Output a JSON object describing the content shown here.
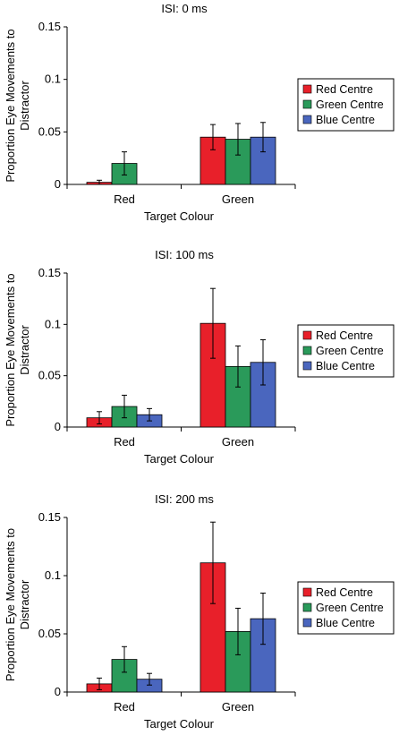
{
  "legend_entries": [
    "Red Centre",
    "Green Centre",
    "Blue Centre"
  ],
  "colors": {
    "Red Centre": "#e8202a",
    "Green Centre": "#2a9a5a",
    "Blue Centre": "#4a66be"
  },
  "chart_data": [
    {
      "type": "bar",
      "title": "ISI:  0 ms",
      "xlabel": "Target Colour",
      "ylabel": "Proportion Eye Movements to Distractor",
      "categories": [
        "Red",
        "Green"
      ],
      "ylim": [
        0,
        0.15
      ],
      "yticks": [
        "0",
        "0.05",
        "0.1",
        "0.15"
      ],
      "legend": "right",
      "series": [
        {
          "name": "Red Centre",
          "values": [
            0.002,
            0.045
          ],
          "errors": [
            0.002,
            0.012
          ]
        },
        {
          "name": "Green Centre",
          "values": [
            0.02,
            0.043
          ],
          "errors": [
            0.011,
            0.015
          ]
        },
        {
          "name": "Blue Centre",
          "values": [
            null,
            0.045
          ],
          "errors": [
            null,
            0.014
          ]
        }
      ]
    },
    {
      "type": "bar",
      "title": "ISI:  100 ms",
      "xlabel": "Target Colour",
      "ylabel": "Proportion Eye Movements to Distractor",
      "categories": [
        "Red",
        "Green"
      ],
      "ylim": [
        0,
        0.15
      ],
      "yticks": [
        "0",
        "0.05",
        "0.1",
        "0.15"
      ],
      "legend": "right",
      "series": [
        {
          "name": "Red Centre",
          "values": [
            0.009,
            0.101
          ],
          "errors": [
            0.006,
            0.034
          ]
        },
        {
          "name": "Green Centre",
          "values": [
            0.02,
            0.059
          ],
          "errors": [
            0.011,
            0.02
          ]
        },
        {
          "name": "Blue Centre",
          "values": [
            0.012,
            0.063
          ],
          "errors": [
            0.006,
            0.022
          ]
        }
      ]
    },
    {
      "type": "bar",
      "title": "ISI:  200 ms",
      "xlabel": "Target Colour",
      "ylabel": "Proportion Eye Movements to Distractor",
      "categories": [
        "Red",
        "Green"
      ],
      "ylim": [
        0,
        0.15
      ],
      "yticks": [
        "0",
        "0.05",
        "0.1",
        "0.15"
      ],
      "legend": "right",
      "series": [
        {
          "name": "Red Centre",
          "values": [
            0.007,
            0.111
          ],
          "errors": [
            0.005,
            0.035
          ]
        },
        {
          "name": "Green Centre",
          "values": [
            0.028,
            0.052
          ],
          "errors": [
            0.011,
            0.02
          ]
        },
        {
          "name": "Blue Centre",
          "values": [
            0.011,
            0.063
          ],
          "errors": [
            0.005,
            0.022
          ]
        }
      ]
    }
  ]
}
